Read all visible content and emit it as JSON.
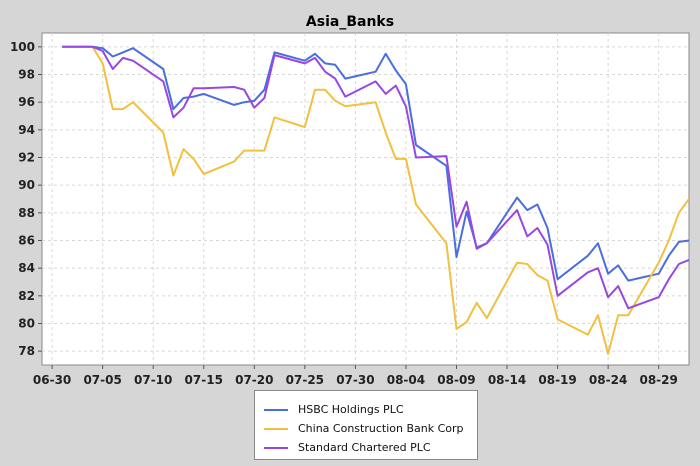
{
  "chart_data": {
    "type": "line",
    "title": "Asia_Banks",
    "xlabel": "",
    "ylabel": "",
    "xlim": [
      "2024-06-29",
      "2024-09-01"
    ],
    "ylim": [
      77,
      101
    ],
    "grid": true,
    "legend_position": "bottom",
    "x_ticks": [
      "06-30",
      "07-05",
      "07-10",
      "07-15",
      "07-20",
      "07-25",
      "07-30",
      "08-04",
      "08-09",
      "08-14",
      "08-19",
      "08-24",
      "08-29"
    ],
    "y_ticks": [
      78,
      80,
      82,
      84,
      86,
      88,
      90,
      92,
      94,
      96,
      98,
      100
    ],
    "x": [
      "2024-07-01",
      "2024-07-02",
      "2024-07-03",
      "2024-07-04",
      "2024-07-05",
      "2024-07-06",
      "2024-07-07",
      "2024-07-08",
      "2024-07-11",
      "2024-07-12",
      "2024-07-13",
      "2024-07-14",
      "2024-07-15",
      "2024-07-18",
      "2024-07-19",
      "2024-07-20",
      "2024-07-21",
      "2024-07-22",
      "2024-07-25",
      "2024-07-26",
      "2024-07-27",
      "2024-07-28",
      "2024-07-29",
      "2024-08-01",
      "2024-08-02",
      "2024-08-03",
      "2024-08-04",
      "2024-08-05",
      "2024-08-08",
      "2024-08-09",
      "2024-08-10",
      "2024-08-11",
      "2024-08-12",
      "2024-08-15",
      "2024-08-16",
      "2024-08-17",
      "2024-08-18",
      "2024-08-19",
      "2024-08-22",
      "2024-08-23",
      "2024-08-24",
      "2024-08-25",
      "2024-08-26",
      "2024-08-29",
      "2024-08-30",
      "2024-08-31",
      "2024-09-01"
    ],
    "series": [
      {
        "name": "HSBC Holdings PLC",
        "color": "#4a6ee0",
        "values": [
          100.0,
          100.0,
          100.0,
          100.0,
          99.9,
          99.3,
          99.6,
          99.9,
          98.4,
          95.5,
          96.3,
          96.4,
          96.6,
          95.8,
          96.0,
          96.1,
          96.9,
          99.6,
          99.0,
          99.5,
          98.8,
          98.7,
          97.7,
          98.2,
          99.5,
          98.3,
          97.3,
          92.9,
          91.4,
          84.8,
          88.1,
          85.5,
          85.8,
          89.1,
          88.2,
          88.6,
          86.9,
          83.2,
          84.9,
          85.8,
          83.6,
          84.2,
          83.1,
          83.6,
          84.9,
          85.9,
          86.0
        ]
      },
      {
        "name": "China Construction Bank Corp",
        "color": "#f0c040",
        "values": [
          100.0,
          100.0,
          100.0,
          100.0,
          98.8,
          95.5,
          95.5,
          96.0,
          93.8,
          90.7,
          92.6,
          91.9,
          90.8,
          91.7,
          92.5,
          92.5,
          92.5,
          94.9,
          94.2,
          96.9,
          96.9,
          96.1,
          95.7,
          96.0,
          93.8,
          91.9,
          91.9,
          88.6,
          85.8,
          79.6,
          80.1,
          81.5,
          80.4,
          84.4,
          84.3,
          83.5,
          83.1,
          80.3,
          79.2,
          80.6,
          77.8,
          80.6,
          80.6,
          84.4,
          86.0,
          88.0,
          89.0
        ]
      },
      {
        "name": "Standard Chartered PLC",
        "color": "#9848e0",
        "values": [
          100.0,
          100.0,
          100.0,
          100.0,
          99.7,
          98.4,
          99.2,
          99.0,
          97.5,
          94.9,
          95.6,
          97.0,
          97.0,
          97.1,
          96.9,
          95.6,
          96.3,
          99.4,
          98.8,
          99.2,
          98.2,
          97.7,
          96.4,
          97.5,
          96.6,
          97.2,
          95.7,
          92.0,
          92.1,
          87.0,
          88.8,
          85.4,
          85.8,
          88.2,
          86.3,
          86.9,
          85.7,
          82.0,
          83.7,
          84.0,
          81.9,
          82.7,
          81.1,
          81.9,
          83.2,
          84.3,
          84.6
        ]
      }
    ]
  }
}
